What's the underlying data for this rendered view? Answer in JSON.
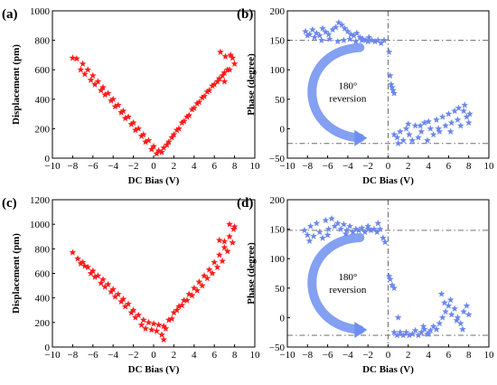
{
  "colors": {
    "red": "#ff1a1a",
    "blue": "#6b86ec",
    "arrow": "#6f8ff0",
    "ref": "#6d6d6d"
  },
  "chart_data": [
    {
      "type": "scatter",
      "panel_label": "(a)",
      "xlabel": "DC Bias (V)",
      "ylabel": "Displacement (pm)",
      "xlim": [
        -10,
        10
      ],
      "ylim": [
        0,
        1000
      ],
      "xticks": [
        -10,
        -8,
        -6,
        -4,
        -2,
        0,
        2,
        4,
        6,
        8,
        10
      ],
      "yticks": [
        0,
        200,
        400,
        600,
        800,
        1000
      ],
      "grid": false,
      "marker": "star",
      "color": "#ff1a1a",
      "points": [
        [
          -8.0,
          680
        ],
        [
          -7.6,
          675
        ],
        [
          -7.0,
          640
        ],
        [
          -6.5,
          600
        ],
        [
          -6.0,
          560
        ],
        [
          -5.5,
          520
        ],
        [
          -5.0,
          480
        ],
        [
          -4.5,
          440
        ],
        [
          -4.0,
          400
        ],
        [
          -3.5,
          360
        ],
        [
          -3.0,
          320
        ],
        [
          -2.5,
          280
        ],
        [
          -2.0,
          240
        ],
        [
          -1.5,
          200
        ],
        [
          -1.0,
          160
        ],
        [
          -0.5,
          120
        ],
        [
          0.0,
          80
        ],
        [
          0.5,
          50
        ],
        [
          1.0,
          70
        ],
        [
          1.5,
          110
        ],
        [
          2.0,
          160
        ],
        [
          2.5,
          200
        ],
        [
          3.0,
          250
        ],
        [
          3.5,
          290
        ],
        [
          4.0,
          340
        ],
        [
          4.5,
          380
        ],
        [
          5.0,
          420
        ],
        [
          5.5,
          460
        ],
        [
          6.0,
          500
        ],
        [
          6.5,
          540
        ],
        [
          7.0,
          580
        ],
        [
          7.5,
          600
        ],
        [
          8.0,
          640
        ],
        [
          -7.2,
          600
        ],
        [
          -6.8,
          570
        ],
        [
          -6.2,
          530
        ],
        [
          -5.8,
          500
        ],
        [
          -5.2,
          460
        ],
        [
          -4.8,
          430
        ],
        [
          -4.2,
          390
        ],
        [
          -3.8,
          350
        ],
        [
          -3.2,
          310
        ],
        [
          -2.8,
          270
        ],
        [
          -2.2,
          230
        ],
        [
          -1.8,
          190
        ],
        [
          -1.2,
          150
        ],
        [
          -0.8,
          110
        ],
        [
          -0.2,
          60
        ],
        [
          0.3,
          30
        ],
        [
          0.8,
          40
        ],
        [
          1.3,
          90
        ],
        [
          1.8,
          140
        ],
        [
          2.3,
          190
        ],
        [
          2.8,
          240
        ],
        [
          3.3,
          280
        ],
        [
          3.8,
          330
        ],
        [
          4.3,
          370
        ],
        [
          4.8,
          410
        ],
        [
          5.3,
          450
        ],
        [
          5.8,
          490
        ],
        [
          6.3,
          520
        ],
        [
          6.8,
          560
        ],
        [
          7.3,
          600
        ],
        [
          7.8,
          680
        ],
        [
          6.6,
          720
        ],
        [
          7.1,
          690
        ],
        [
          7.6,
          700
        ],
        [
          7.0,
          520
        ]
      ]
    },
    {
      "type": "scatter",
      "panel_label": "(b)",
      "xlabel": "DC Bias (V)",
      "ylabel": "Phase (degree)",
      "xlim": [
        -10,
        10
      ],
      "ylim": [
        -50,
        200
      ],
      "xticks": [
        -10,
        -8,
        -6,
        -4,
        -2,
        0,
        2,
        4,
        6,
        8,
        10
      ],
      "yticks": [
        -50,
        0,
        50,
        100,
        150,
        200
      ],
      "grid": false,
      "marker": "star",
      "color": "#6b86ec",
      "ref_lines": {
        "y": [
          150,
          -25
        ],
        "x": [
          0
        ]
      },
      "annotation": "180° reversion",
      "points": [
        [
          -8.2,
          165
        ],
        [
          -7.8,
          160
        ],
        [
          -7.5,
          168
        ],
        [
          -7.1,
          162
        ],
        [
          -6.8,
          158
        ],
        [
          -6.5,
          170
        ],
        [
          -6.2,
          164
        ],
        [
          -5.9,
          160
        ],
        [
          -5.5,
          168
        ],
        [
          -5.2,
          172
        ],
        [
          -4.9,
          180
        ],
        [
          -4.6,
          176
        ],
        [
          -4.3,
          170
        ],
        [
          -4.0,
          165
        ],
        [
          -3.7,
          160
        ],
        [
          -3.4,
          158
        ],
        [
          -3.1,
          162
        ],
        [
          -2.8,
          155
        ],
        [
          -2.5,
          152
        ],
        [
          -2.2,
          150
        ],
        [
          -1.9,
          155
        ],
        [
          -1.6,
          150
        ],
        [
          -1.3,
          148
        ],
        [
          -1.0,
          150
        ],
        [
          -0.7,
          145
        ],
        [
          -0.4,
          150
        ],
        [
          -8.0,
          158
        ],
        [
          -7.3,
          155
        ],
        [
          -6.6,
          150
        ],
        [
          -5.8,
          152
        ],
        [
          -5.0,
          148
        ],
        [
          -4.4,
          150
        ],
        [
          -3.8,
          152
        ],
        [
          -3.2,
          148
        ],
        [
          -2.6,
          150
        ],
        [
          -2.0,
          148
        ],
        [
          0.1,
          130
        ],
        [
          0.2,
          90
        ],
        [
          0.3,
          75
        ],
        [
          0.4,
          70
        ],
        [
          0.5,
          65
        ],
        [
          0.6,
          60
        ],
        [
          0.6,
          -10
        ],
        [
          0.9,
          -15
        ],
        [
          1.2,
          -5
        ],
        [
          1.5,
          -20
        ],
        [
          1.8,
          0
        ],
        [
          2.1,
          -10
        ],
        [
          2.4,
          -20
        ],
        [
          2.7,
          5
        ],
        [
          3.0,
          -15
        ],
        [
          3.3,
          -5
        ],
        [
          3.6,
          10
        ],
        [
          3.9,
          -20
        ],
        [
          4.2,
          0
        ],
        [
          4.5,
          -10
        ],
        [
          4.8,
          15
        ],
        [
          5.1,
          -5
        ],
        [
          5.4,
          20
        ],
        [
          5.7,
          5
        ],
        [
          6.0,
          25
        ],
        [
          6.3,
          10
        ],
        [
          6.6,
          30
        ],
        [
          6.9,
          15
        ],
        [
          7.2,
          5
        ],
        [
          7.5,
          30
        ],
        [
          7.8,
          20
        ],
        [
          8.0,
          10
        ],
        [
          1.0,
          -25
        ],
        [
          2.0,
          8
        ],
        [
          3.2,
          5
        ],
        [
          4.0,
          12
        ],
        [
          5.0,
          0
        ],
        [
          6.2,
          -5
        ],
        [
          7.0,
          35
        ],
        [
          7.6,
          40
        ],
        [
          8.1,
          25
        ]
      ]
    },
    {
      "type": "scatter",
      "panel_label": "(c)",
      "xlabel": "DC Bias (V)",
      "ylabel": "Displacement (pm)",
      "xlim": [
        -10,
        10
      ],
      "ylim": [
        0,
        1200
      ],
      "xticks": [
        -10,
        -8,
        -6,
        -4,
        -2,
        0,
        2,
        4,
        6,
        8,
        10
      ],
      "yticks": [
        0,
        200,
        400,
        600,
        800,
        1000,
        1200
      ],
      "grid": false,
      "marker": "star",
      "color": "#ff1a1a",
      "points": [
        [
          -8.0,
          770
        ],
        [
          -7.5,
          720
        ],
        [
          -7.0,
          690
        ],
        [
          -6.5,
          650
        ],
        [
          -6.0,
          620
        ],
        [
          -5.5,
          580
        ],
        [
          -5.0,
          550
        ],
        [
          -4.5,
          510
        ],
        [
          -4.0,
          470
        ],
        [
          -3.5,
          430
        ],
        [
          -3.0,
          390
        ],
        [
          -2.5,
          350
        ],
        [
          -2.0,
          300
        ],
        [
          -1.5,
          260
        ],
        [
          -1.0,
          220
        ],
        [
          -0.5,
          200
        ],
        [
          0.0,
          190
        ],
        [
          0.5,
          180
        ],
        [
          1.0,
          170
        ],
        [
          1.5,
          220
        ],
        [
          2.0,
          280
        ],
        [
          2.5,
          330
        ],
        [
          3.0,
          380
        ],
        [
          3.5,
          430
        ],
        [
          4.0,
          480
        ],
        [
          4.5,
          530
        ],
        [
          5.0,
          580
        ],
        [
          5.5,
          630
        ],
        [
          6.0,
          690
        ],
        [
          6.5,
          750
        ],
        [
          7.0,
          810
        ],
        [
          7.5,
          900
        ],
        [
          8.0,
          980
        ],
        [
          -7.2,
          680
        ],
        [
          -6.8,
          660
        ],
        [
          -6.2,
          600
        ],
        [
          -5.8,
          570
        ],
        [
          -5.2,
          520
        ],
        [
          -4.8,
          490
        ],
        [
          -4.2,
          450
        ],
        [
          -3.8,
          410
        ],
        [
          -3.2,
          370
        ],
        [
          -2.8,
          330
        ],
        [
          -2.2,
          280
        ],
        [
          -1.8,
          240
        ],
        [
          -1.2,
          180
        ],
        [
          -0.8,
          150
        ],
        [
          -0.2,
          140
        ],
        [
          0.3,
          130
        ],
        [
          0.8,
          100
        ],
        [
          1.0,
          60
        ],
        [
          1.2,
          150
        ],
        [
          1.8,
          230
        ],
        [
          2.3,
          300
        ],
        [
          2.8,
          340
        ],
        [
          3.3,
          380
        ],
        [
          3.8,
          420
        ],
        [
          4.3,
          460
        ],
        [
          4.8,
          500
        ],
        [
          5.3,
          560
        ],
        [
          5.8,
          600
        ],
        [
          6.3,
          650
        ],
        [
          6.8,
          700
        ],
        [
          7.3,
          780
        ],
        [
          7.8,
          850
        ],
        [
          7.5,
          1000
        ],
        [
          7.9,
          960
        ],
        [
          6.5,
          870
        ],
        [
          7.0,
          860
        ]
      ]
    },
    {
      "type": "scatter",
      "panel_label": "(d)",
      "xlabel": "DC Bias (V)",
      "ylabel": "Phase (degree)",
      "xlim": [
        -10,
        10
      ],
      "ylim": [
        -50,
        200
      ],
      "xticks": [
        -10,
        -8,
        -6,
        -4,
        -2,
        0,
        2,
        4,
        6,
        8,
        10
      ],
      "yticks": [
        -50,
        0,
        50,
        100,
        150,
        200
      ],
      "grid": false,
      "marker": "star",
      "color": "#6b86ec",
      "ref_lines": {
        "y": [
          148,
          -30
        ],
        "x": [
          0
        ]
      },
      "annotation": "180° reversion",
      "points": [
        [
          -8.3,
          148
        ],
        [
          -8.0,
          140
        ],
        [
          -7.7,
          155
        ],
        [
          -7.4,
          138
        ],
        [
          -7.1,
          160
        ],
        [
          -6.8,
          145
        ],
        [
          -6.5,
          135
        ],
        [
          -6.2,
          165
        ],
        [
          -5.9,
          150
        ],
        [
          -5.6,
          168
        ],
        [
          -5.3,
          155
        ],
        [
          -5.0,
          160
        ],
        [
          -4.7,
          150
        ],
        [
          -4.4,
          158
        ],
        [
          -4.1,
          148
        ],
        [
          -3.8,
          155
        ],
        [
          -3.5,
          145
        ],
        [
          -3.2,
          150
        ],
        [
          -2.9,
          148
        ],
        [
          -2.6,
          152
        ],
        [
          -2.3,
          145
        ],
        [
          -2.0,
          150
        ],
        [
          -1.7,
          148
        ],
        [
          -1.4,
          150
        ],
        [
          -1.1,
          145
        ],
        [
          -0.8,
          150
        ],
        [
          -0.5,
          135
        ],
        [
          -0.3,
          128
        ],
        [
          -7.8,
          130
        ],
        [
          -6.0,
          140
        ],
        [
          -4.2,
          142
        ],
        [
          -2.0,
          155
        ],
        [
          -1.0,
          160
        ],
        [
          0.1,
          70
        ],
        [
          0.2,
          65
        ],
        [
          0.4,
          55
        ],
        [
          0.6,
          50
        ],
        [
          0.6,
          -25
        ],
        [
          0.9,
          -30
        ],
        [
          1.2,
          -25
        ],
        [
          1.5,
          -30
        ],
        [
          1.8,
          -25
        ],
        [
          2.1,
          -30
        ],
        [
          2.4,
          -28
        ],
        [
          2.7,
          -22
        ],
        [
          3.0,
          -30
        ],
        [
          3.3,
          -25
        ],
        [
          3.6,
          -20
        ],
        [
          3.9,
          -28
        ],
        [
          4.2,
          -22
        ],
        [
          4.5,
          -15
        ],
        [
          4.8,
          -20
        ],
        [
          5.1,
          -10
        ],
        [
          5.4,
          0
        ],
        [
          5.7,
          10
        ],
        [
          6.0,
          20
        ],
        [
          6.3,
          5
        ],
        [
          6.6,
          15
        ],
        [
          6.9,
          0
        ],
        [
          7.2,
          -10
        ],
        [
          7.5,
          10
        ],
        [
          7.8,
          20
        ],
        [
          8.0,
          5
        ],
        [
          5.3,
          40
        ],
        [
          5.6,
          25
        ],
        [
          6.2,
          30
        ],
        [
          1.0,
          0
        ],
        [
          3.5,
          -15
        ],
        [
          4.0,
          -28
        ],
        [
          6.8,
          -5
        ],
        [
          7.4,
          -20
        ]
      ]
    }
  ]
}
